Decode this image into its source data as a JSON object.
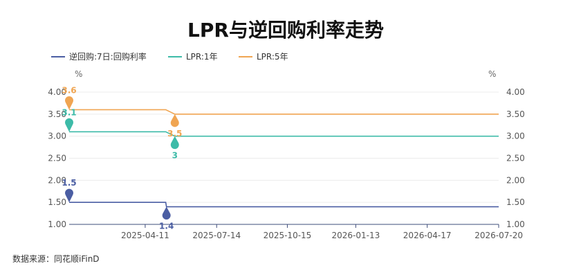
{
  "chart_data": {
    "type": "line",
    "title": "LPR与逆回购利率走势",
    "source": "数据来源：同花顺iFinD",
    "y_unit_left": "%",
    "y_unit_right": "%",
    "ylim": [
      1.0,
      4.0
    ],
    "yticks": [
      "4.00",
      "3.50",
      "3.00",
      "2.50",
      "2.00",
      "1.50",
      "1.00"
    ],
    "ytick_values": [
      4.0,
      3.5,
      3.0,
      2.5,
      2.0,
      1.5,
      1.0
    ],
    "xlim": [
      "2025-01-01",
      "2026-07-20"
    ],
    "xticks": [
      "2025-04-11",
      "2025-07-14",
      "2025-10-15",
      "2026-01-13",
      "2026-04-17",
      "2026-07-20"
    ],
    "grid": true,
    "legend_position": "top-left",
    "series": [
      {
        "name": "逆回购:7日:回购利率",
        "color": "#4b5ea3",
        "points": [
          [
            "2025-01-01",
            1.5
          ],
          [
            "2025-05-08",
            1.5
          ],
          [
            "2025-05-09",
            1.4
          ],
          [
            "2026-07-20",
            1.4
          ]
        ],
        "max_label": "1.5",
        "min_label": "1.4",
        "max_marker": {
          "date": "2025-01-01",
          "value": 1.5
        },
        "min_marker": {
          "date": "2025-05-09",
          "value": 1.4
        }
      },
      {
        "name": "LPR:1年",
        "color": "#3dbba8",
        "points": [
          [
            "2025-01-01",
            3.1
          ],
          [
            "2025-05-08",
            3.1
          ],
          [
            "2025-05-20",
            3.0
          ],
          [
            "2026-07-20",
            3.0
          ]
        ],
        "max_label": "3.1",
        "min_label": "3",
        "max_marker": {
          "date": "2025-01-01",
          "value": 3.1
        },
        "min_marker": {
          "date": "2025-05-20",
          "value": 3.0
        }
      },
      {
        "name": "LPR:5年",
        "color": "#f0a552",
        "points": [
          [
            "2025-01-01",
            3.6
          ],
          [
            "2025-05-08",
            3.6
          ],
          [
            "2025-05-20",
            3.5
          ],
          [
            "2026-07-20",
            3.5
          ]
        ],
        "max_label": "3.6",
        "min_label": "3.5",
        "max_marker": {
          "date": "2025-01-01",
          "value": 3.6
        },
        "min_marker": {
          "date": "2025-05-20",
          "value": 3.5
        }
      }
    ]
  }
}
